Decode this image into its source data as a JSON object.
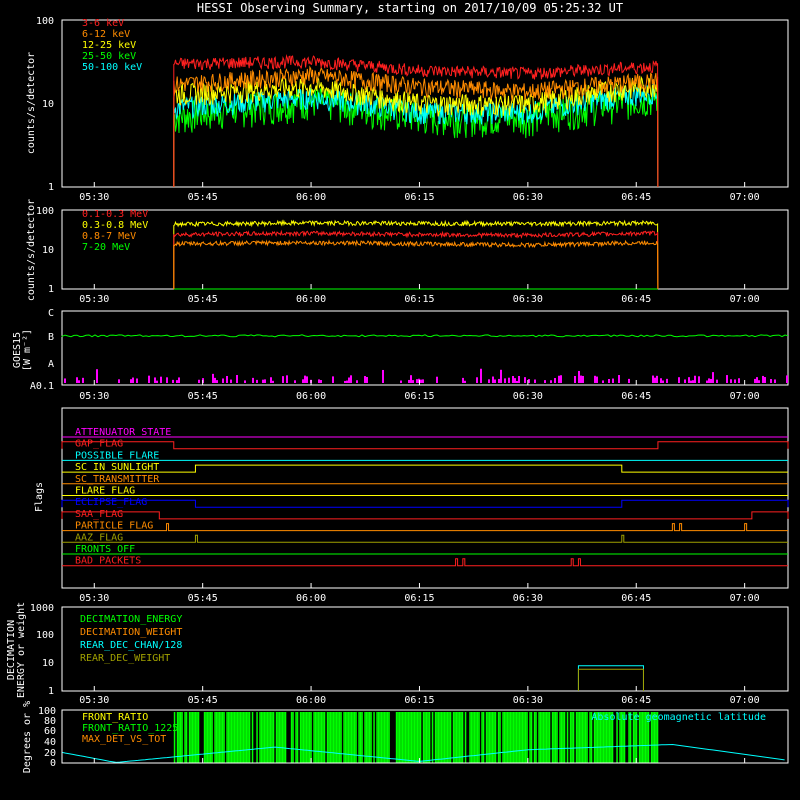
{
  "title": "HESSI Observing Summary, starting on 2017/10/09 05:25:32 UT",
  "time_ticks": [
    "05:30",
    "05:45",
    "06:00",
    "06:15",
    "06:30",
    "06:45",
    "07:00"
  ],
  "colors": {
    "background": "#000000",
    "axes": "#ffffff",
    "red": "#ff2020",
    "orange": "#ff8c00",
    "yellow": "#ffff00",
    "green": "#00ff00",
    "cyan": "#00ffff",
    "magenta": "#ff00ff",
    "blue": "#0000ff",
    "olive": "#a0a000"
  },
  "panels": {
    "counts_low": {
      "ylabel": "counts/s/detector",
      "yticks": [
        "1",
        "10",
        "100"
      ],
      "legend": [
        "3-6 keV",
        "6-12 keV",
        "12-25 keV",
        "25-50 keV",
        "50-100 keV"
      ]
    },
    "counts_high": {
      "ylabel": "counts/s/detector",
      "yticks": [
        "1",
        "10",
        "100"
      ],
      "legend": [
        "0.1-0.3 MeV",
        "0.3-0.8 MeV",
        "0.8-7 MeV",
        "7-20 MeV"
      ]
    },
    "goes": {
      "ylabel_1": "GOES15",
      "ylabel_2": "[W m⁻²]",
      "yticks": [
        "A0.1",
        "A",
        "B",
        "C"
      ]
    },
    "flags": {
      "ylabel": "Flags",
      "items": [
        "ATTENUATOR_STATE",
        "GAP_FLAG",
        "POSSIBLE_FLARE",
        "SC_IN_SUNLIGHT",
        "SC_TRANSMITTER",
        "FLARE_FLAG",
        "ECLIPSE_FLAG",
        "SAA_FLAG",
        "PARTICLE_FLAG",
        "AAZ_FLAG",
        "FRONTS_OFF",
        "BAD_PACKETS"
      ]
    },
    "decimation": {
      "ylabel_1": "DECIMATION",
      "ylabel_2": "ENERGY or weight",
      "yticks": [
        "1",
        "10",
        "100",
        "1000"
      ],
      "legend": [
        "DECIMATION_ENERGY",
        "DECIMATION_WEIGHT",
        "REAR_DEC_CHAN/128",
        "REAR_DEC_WEIGHT"
      ]
    },
    "ratio": {
      "ylabel": "Degrees or %",
      "yticks": [
        "0",
        "20",
        "40",
        "60",
        "80",
        "100"
      ],
      "legend": [
        "FRONT_RATIO",
        "FRONT_RATIO_1225",
        "MAX_DET_VS_TOT"
      ],
      "right_legend": "Absolute geomagnetic latitude"
    }
  },
  "chart_data": {
    "type": "line",
    "title": "HESSI Observing Summary, starting on 2017/10/09 05:25:32 UT",
    "x_unit": "UT time",
    "xlim": [
      "05:25:32",
      "07:06"
    ],
    "observation_window": [
      "05:41",
      "06:48"
    ],
    "counts_low": {
      "ylim": [
        1,
        100
      ],
      "yscale": "log",
      "series": [
        {
          "name": "3-6 keV",
          "x": [
            "05:41",
            "06:00",
            "06:15",
            "06:30",
            "06:48"
          ],
          "values": [
            30,
            32,
            25,
            23,
            28
          ]
        },
        {
          "name": "6-12 keV",
          "x": [
            "05:41",
            "06:00",
            "06:15",
            "06:30",
            "06:48"
          ],
          "values": [
            17,
            22,
            16,
            14,
            19
          ]
        },
        {
          "name": "12-25 keV",
          "x": [
            "05:41",
            "06:00",
            "06:15",
            "06:30",
            "06:48"
          ],
          "values": [
            13,
            16,
            10,
            10,
            17
          ]
        },
        {
          "name": "25-50 keV",
          "x": [
            "05:41",
            "06:00",
            "06:15",
            "06:30",
            "06:48"
          ],
          "values": [
            7,
            11,
            7,
            7,
            12
          ]
        },
        {
          "name": "50-100 keV",
          "x": [
            "05:41",
            "06:00",
            "06:15",
            "06:30",
            "06:48"
          ],
          "values": [
            9,
            12,
            8,
            8,
            14
          ]
        }
      ]
    },
    "counts_high": {
      "ylim": [
        1,
        100
      ],
      "yscale": "log",
      "series": [
        {
          "name": "0.1-0.3 MeV",
          "x": [
            "05:41",
            "06:00",
            "06:15",
            "06:30",
            "06:48"
          ],
          "values": [
            24,
            26,
            24,
            23,
            26
          ]
        },
        {
          "name": "0.3-0.8 MeV",
          "x": [
            "05:41",
            "06:00",
            "06:15",
            "06:30",
            "06:48"
          ],
          "values": [
            44,
            47,
            46,
            45,
            47
          ]
        },
        {
          "name": "0.8-7 MeV",
          "x": [
            "05:41",
            "06:00",
            "06:15",
            "06:30",
            "06:48"
          ],
          "values": [
            14,
            15,
            14,
            13,
            15
          ]
        },
        {
          "name": "7-20 MeV",
          "x": [
            "05:41",
            "06:48"
          ],
          "values": [
            1,
            1
          ]
        }
      ]
    },
    "goes": {
      "ylim": [
        "A0.1",
        "C"
      ],
      "level_B_fraction": 0.8
    },
    "flags": {
      "GAP_FLAG": {
        "on": [
          [
            "05:25:32",
            "05:41"
          ],
          [
            "06:48",
            "07:06"
          ]
        ]
      },
      "SC_IN_SUNLIGHT": {
        "on": [
          [
            "05:44",
            "06:43"
          ]
        ]
      },
      "ECLIPSE_FLAG": {
        "on": [
          [
            "05:25:32",
            "05:44"
          ],
          [
            "06:43",
            "07:06"
          ]
        ]
      },
      "SAA_FLAG": {
        "on": [
          [
            "05:25:32",
            "05:39"
          ],
          [
            "07:01",
            "07:06"
          ]
        ]
      },
      "PARTICLE_FLAG": {
        "spikes": [
          "05:40",
          "06:50",
          "06:51",
          "07:00"
        ]
      },
      "AAZ_FLAG": {
        "spikes": [
          "05:44",
          "06:43"
        ]
      },
      "BAD_PACKETS": {
        "spikes": [
          "06:20",
          "06:21",
          "06:36",
          "06:37"
        ]
      }
    },
    "decimation": {
      "ylim": [
        1,
        1000
      ],
      "yscale": "log",
      "series": [
        {
          "name": "REAR_DEC_CHAN/128",
          "x": [
            "06:37",
            "06:46"
          ],
          "values": [
            8,
            8
          ]
        },
        {
          "name": "REAR_DEC_WEIGHT",
          "x": [
            "06:37",
            "06:46"
          ],
          "values": [
            6,
            6
          ]
        }
      ]
    },
    "ratio": {
      "ylim": [
        0,
        100
      ],
      "series": [
        {
          "name": "Absolute geomagnetic latitude",
          "x": [
            "05:25:32",
            "05:33",
            "05:55",
            "06:15",
            "06:30",
            "06:50",
            "07:06"
          ],
          "values": [
            20,
            1,
            30,
            3,
            25,
            35,
            5
          ]
        }
      ]
    }
  }
}
